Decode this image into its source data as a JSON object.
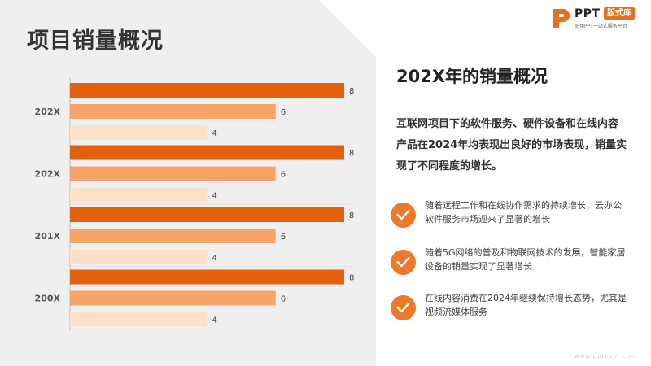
{
  "page": {
    "title": "项目销量概况",
    "watermark": "www.pptcool.com"
  },
  "logo": {
    "brand": "PPT",
    "badge": "版式库",
    "subtitle": "职场PPT一站式服务平台"
  },
  "right": {
    "title": "202X年的销量概况",
    "description": "互联网项目下的软件服务、硬件设备和在线内容产品在2024年均表现出良好的市场表现，销量实现了不同程度的增长。",
    "bullets": [
      {
        "text": "随着远程工作和在线协作需求的持续增长，云办公软件服务市场迎来了显著的增长"
      },
      {
        "text": "随着5G网络的普及和物联网技术的发展，智能家居设备的销量实现了显著增长"
      },
      {
        "text": "在线内容消费在2024年继续保持增长态势，尤其是视频流媒体服务"
      }
    ]
  },
  "colors": {
    "accent": "#e86f1e",
    "dark_bar": "#e2610e",
    "mid_bar": "#f7a468",
    "light_bar": "#fde0c8",
    "panel": "#efefef"
  },
  "chart_data": {
    "type": "bar",
    "orientation": "horizontal",
    "categories": [
      "202X",
      "202X",
      "201X",
      "200X"
    ],
    "series": [
      {
        "values": [
          8,
          8,
          8,
          8
        ]
      },
      {
        "values": [
          6,
          6,
          6,
          6
        ]
      },
      {
        "values": [
          4,
          4,
          4,
          4
        ]
      }
    ],
    "xlim": [
      0,
      8
    ],
    "grid": false,
    "legend": "none"
  }
}
